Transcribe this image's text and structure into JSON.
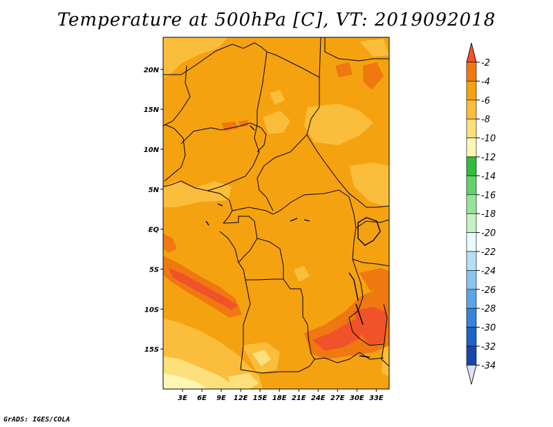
{
  "title": "Temperature at 500hPa [C], VT: 2019092018",
  "footer": "GrADS: IGES/COLA",
  "map": {
    "variable": "Temperature at 500hPa",
    "units": "C",
    "valid_time": "2019092018",
    "lon_range": [
      0,
      35
    ],
    "lat_range": [
      -20,
      24
    ],
    "lon_ticks": [
      3,
      6,
      9,
      12,
      15,
      18,
      21,
      24,
      27,
      30,
      33
    ],
    "lon_tick_labels": [
      "3E",
      "6E",
      "9E",
      "12E",
      "15E",
      "18E",
      "21E",
      "24E",
      "27E",
      "30E",
      "33E"
    ],
    "lat_ticks": [
      20,
      15,
      10,
      5,
      0,
      -5,
      -10,
      -15
    ],
    "lat_tick_labels": [
      "20N",
      "15N",
      "10N",
      "5N",
      "EQ",
      "5S",
      "10S",
      "15S"
    ],
    "dominant_range": "-6 to -4"
  },
  "colorbar": {
    "labels": [
      "-2",
      "-4",
      "-6",
      "-8",
      "-10",
      "-12",
      "-14",
      "-16",
      "-18",
      "-20",
      "-22",
      "-24",
      "-26",
      "-28",
      "-30",
      "-32",
      "-34"
    ],
    "colors": [
      "#f0522a",
      "#f07810",
      "#f5a210",
      "#fbbd3c",
      "#fbe07c",
      "#fdf6b4",
      "#2fbd3a",
      "#62d36a",
      "#97e39a",
      "#c5f2c3",
      "#e8fbfd",
      "#b6def5",
      "#8ac4ef",
      "#5aa6e6",
      "#3784dc",
      "#1f62c8",
      "#1847a8",
      "#0d1a78"
    ],
    "top_arrow_color": "#f0522a",
    "bottom_arrow_color": "#e0e0f5"
  }
}
